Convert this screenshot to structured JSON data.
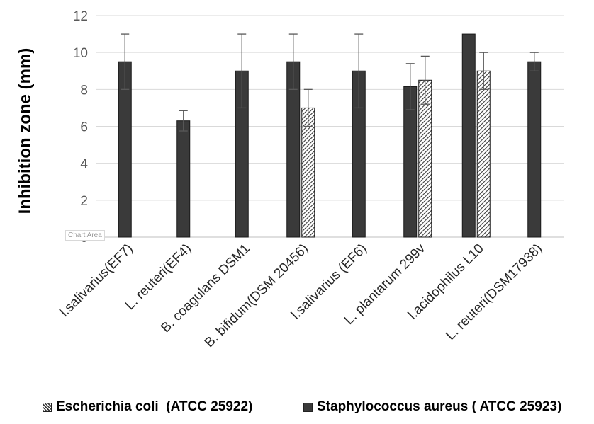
{
  "chart_data": {
    "type": "bar",
    "ylabel": "Inhibition zone (mm)",
    "xlabel": "",
    "ylim": [
      0,
      12
    ],
    "yticks": [
      "0",
      "2",
      "4",
      "6",
      "8",
      "10",
      "12"
    ],
    "grid": true,
    "legend_position": "bottom",
    "categories": [
      "l.salivarius(EF7)",
      "L. reuteri(EF4)",
      "B. coagulans DSM1",
      "B. bifidum(DSM 20456)",
      "l.salivarius (EF6)",
      "L. plantarum 299v",
      "l.acidophilus L10",
      "L. reuteri(DSM17938)"
    ],
    "series": [
      {
        "name": "Staphylococcus aureus ( ATCC 25923)",
        "color": "#3a3a3a",
        "pattern": "solid",
        "values": [
          9.5,
          6.3,
          9.0,
          9.5,
          9.0,
          8.15,
          11.0,
          9.5
        ],
        "errors": [
          1.5,
          0.55,
          2.0,
          1.5,
          2.0,
          1.25,
          0,
          0.5
        ]
      },
      {
        "name": "Escherichia coli  (ATCC 25922)",
        "color": "#3a3a3a",
        "pattern": "hatch",
        "values": [
          null,
          null,
          null,
          7.0,
          null,
          8.5,
          9.0,
          null
        ],
        "errors": [
          null,
          null,
          null,
          1.0,
          null,
          1.3,
          1.0,
          null
        ]
      }
    ]
  },
  "chart_area_tooltip": "Chart Area"
}
